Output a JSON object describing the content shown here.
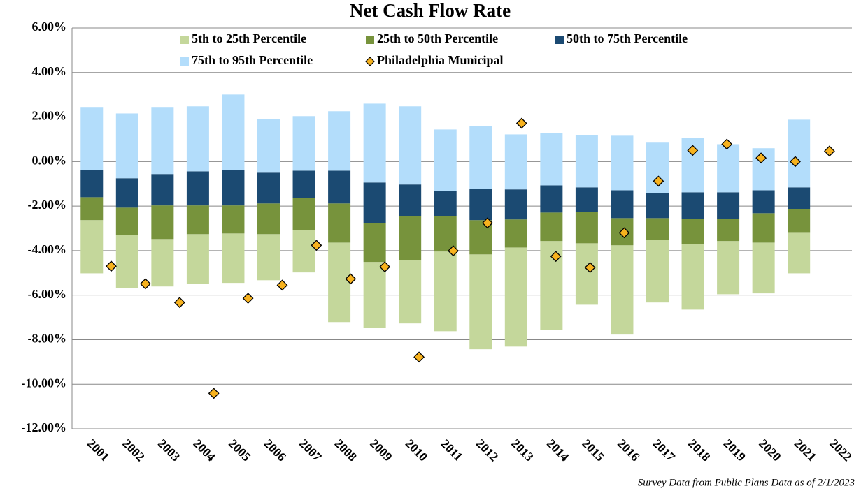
{
  "chart_data": {
    "type": "floating-bar",
    "title": "Net Cash Flow Rate",
    "categories": [
      "2001",
      "2002",
      "2003",
      "2004",
      "2005",
      "2006",
      "2007",
      "2008",
      "2009",
      "2010",
      "2011",
      "2012",
      "2013",
      "2014",
      "2015",
      "2016",
      "2017",
      "2018",
      "2019",
      "2020",
      "2021",
      "2022"
    ],
    "bands": [
      {
        "name": "5th to 25th Percentile",
        "color": "#c4d79b"
      },
      {
        "name": "25th to 50th Percentile",
        "color": "#77933c"
      },
      {
        "name": "50th to 75th Percentile",
        "color": "#1b4a72"
      },
      {
        "name": "75th to 95th Percentile",
        "color": "#b3ddfb"
      }
    ],
    "boundaries": [
      [
        -5.02,
        -5.67,
        -5.61,
        -5.49,
        -5.45,
        -5.33,
        -4.98,
        -7.21,
        -7.46,
        -7.27,
        -7.62,
        -8.43,
        -8.31,
        -7.55,
        -6.43,
        -7.77,
        -6.33,
        -6.65,
        -5.96,
        -5.92,
        -5.02,
        null
      ],
      [
        -2.63,
        -3.29,
        -3.48,
        -3.26,
        -3.23,
        -3.26,
        -3.07,
        -3.64,
        -4.51,
        -4.42,
        -4.04,
        -4.17,
        -3.86,
        -3.57,
        -3.67,
        -3.76,
        -3.51,
        -3.7,
        -3.57,
        -3.64,
        -3.17,
        null
      ],
      [
        -1.6,
        -2.07,
        -1.97,
        -1.97,
        -1.97,
        -1.88,
        -1.63,
        -1.88,
        -2.76,
        -2.45,
        -2.45,
        -2.63,
        -2.6,
        -2.29,
        -2.26,
        -2.54,
        -2.54,
        -2.57,
        -2.57,
        -2.32,
        -2.13,
        null
      ],
      [
        -0.38,
        -0.75,
        -0.56,
        -0.44,
        -0.38,
        -0.5,
        -0.41,
        -0.41,
        -0.94,
        -1.03,
        -1.32,
        -1.22,
        -1.25,
        -1.07,
        -1.16,
        -1.29,
        -1.41,
        -1.38,
        -1.38,
        -1.29,
        -1.16,
        null
      ],
      [
        2.45,
        2.16,
        2.45,
        2.48,
        3.01,
        1.91,
        2.04,
        2.26,
        2.6,
        2.48,
        1.44,
        1.6,
        1.22,
        1.29,
        1.19,
        1.16,
        0.85,
        1.07,
        0.78,
        0.6,
        1.88,
        null
      ]
    ],
    "series": [
      {
        "name": "Philadelphia Municipal",
        "color": "#f7b21e",
        "values": [
          -4.7,
          -5.49,
          -6.33,
          -10.41,
          -6.14,
          -5.55,
          -3.76,
          -5.27,
          -4.73,
          -8.78,
          -4.01,
          -2.76,
          1.72,
          -4.26,
          -4.76,
          -3.2,
          -0.88,
          0.5,
          0.78,
          0.16,
          0,
          0.47
        ]
      }
    ],
    "ylim": [
      -12,
      6
    ],
    "yticks": [
      {
        "value": -12,
        "label": "-12.00%"
      },
      {
        "value": -10,
        "label": "-10.00%"
      },
      {
        "value": -8,
        "label": "-8.00%"
      },
      {
        "value": -6,
        "label": "-6.00%"
      },
      {
        "value": -4,
        "label": "-4.00%"
      },
      {
        "value": -2,
        "label": "-2.00%"
      },
      {
        "value": 0,
        "label": "0.00%"
      },
      {
        "value": 2,
        "label": "2.00%"
      },
      {
        "value": 4,
        "label": "4.00%"
      },
      {
        "value": 6,
        "label": "6.00%"
      }
    ],
    "grid": true,
    "note": "Survey Data from Public Plans Data as of 2/1/2023"
  }
}
